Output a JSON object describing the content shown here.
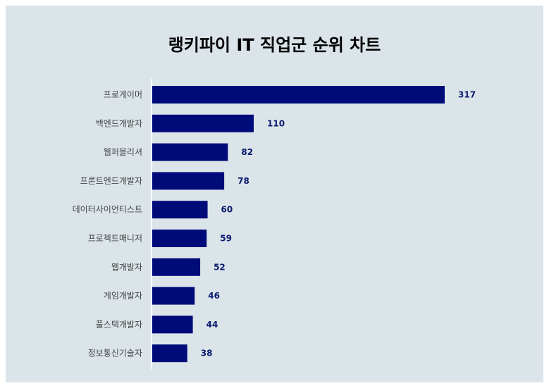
{
  "chart_data": {
    "type": "bar",
    "orientation": "horizontal",
    "title": "랭키파이 IT 직업군 순위 차트",
    "categories": [
      "프로게이머",
      "백엔드개발자",
      "웹퍼블리셔",
      "프론트엔드개발자",
      "데이터사이언티스트",
      "프로젝트매니저",
      "웹개발자",
      "게임개발자",
      "풀스택개발자",
      "정보통신기술자"
    ],
    "values": [
      317,
      110,
      82,
      78,
      60,
      59,
      52,
      46,
      44,
      38
    ],
    "xlim": [
      0,
      317
    ],
    "grid": false,
    "bar_color": "#000b7a",
    "background": "#dbe5e9"
  }
}
